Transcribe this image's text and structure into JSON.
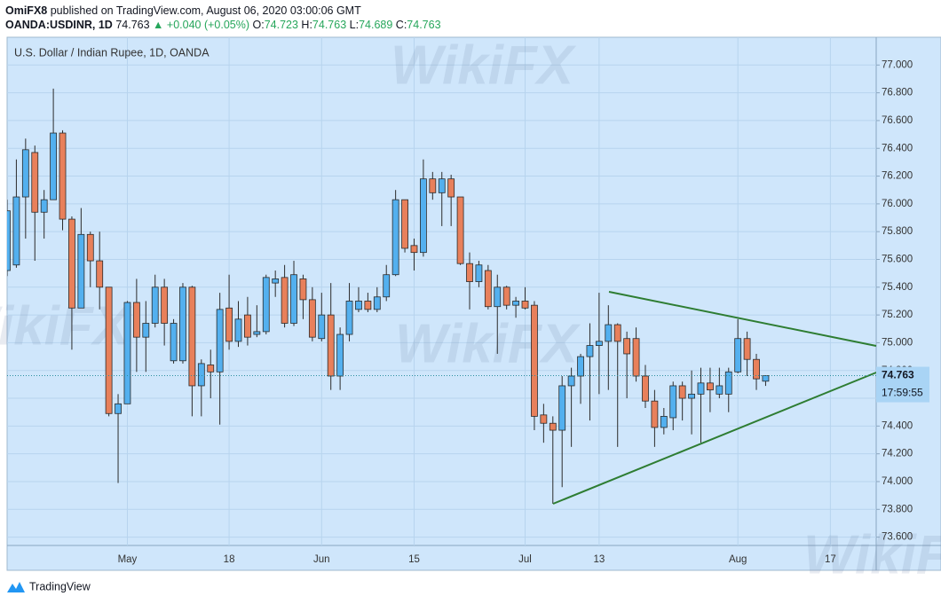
{
  "header": {
    "publisher": "OmiFX8",
    "published": "published on TradingView.com, August 06, 2020 03:00:06 GMT",
    "symbol": "OANDA:USDINR, 1D",
    "last": "74.763",
    "change": "▲ +0.040 (+0.05%)",
    "ohlc": [
      {
        "label": "O:",
        "value": "74.723"
      },
      {
        "label": "H:",
        "value": "74.763"
      },
      {
        "label": "L:",
        "value": "74.689"
      },
      {
        "label": "C:",
        "value": "74.763"
      }
    ]
  },
  "watermark": "WikiFX",
  "footer": "TradingView",
  "chart_data": {
    "type": "candlestick",
    "title": "U.S. Dollar / Indian Rupee, 1D, OANDA",
    "categories": [
      null,
      null,
      null,
      null,
      null,
      null,
      null,
      null,
      null,
      null,
      null,
      null,
      null,
      "May",
      null,
      null,
      null,
      null,
      null,
      null,
      null,
      null,
      null,
      null,
      "18",
      null,
      null,
      null,
      null,
      null,
      null,
      null,
      null,
      null,
      "Jun",
      null,
      null,
      null,
      null,
      null,
      null,
      null,
      null,
      null,
      "15",
      null,
      null,
      null,
      null,
      null,
      null,
      null,
      null,
      null,
      null,
      null,
      "Jul",
      null,
      null,
      null,
      null,
      null,
      null,
      null,
      "13",
      null,
      null,
      null,
      null,
      null,
      null,
      null,
      null,
      null,
      null,
      null,
      null,
      null,
      null,
      "Aug",
      null,
      null,
      null,
      null,
      null,
      null,
      null,
      null,
      null,
      "17"
    ],
    "open": [
      75.52,
      75.56,
      76.05,
      76.37,
      75.94,
      76.03,
      76.51,
      75.89,
      75.25,
      75.78,
      75.59,
      75.4,
      74.49,
      74.56,
      75.29,
      75.04,
      75.14,
      75.4,
      74.87,
      74.87,
      75.4,
      74.69,
      74.84,
      74.79,
      75.25,
      75.01,
      75.2,
      75.06,
      75.08,
      75.43,
      75.47,
      75.14,
      75.46,
      75.31,
      75.03,
      75.2,
      74.76,
      75.06,
      75.24,
      75.3,
      75.24,
      75.33,
      75.49,
      76.03,
      75.7,
      75.65,
      76.18,
      76.08,
      76.18,
      76.05,
      75.57,
      75.44,
      75.52,
      75.26,
      75.4,
      75.27,
      75.3,
      75.27,
      74.48,
      74.42,
      74.37,
      74.69,
      74.76,
      74.9,
      74.98,
      75.01,
      75.13,
      75.03,
      75.03,
      74.76,
      74.58,
      74.39,
      74.46,
      74.69,
      74.6,
      74.63,
      74.71,
      74.63,
      74.63,
      74.79,
      75.03,
      74.88,
      74.723,
      null,
      null,
      null,
      null,
      null,
      null,
      null
    ],
    "high": [
      76.03,
      76.32,
      76.47,
      76.42,
      76.1,
      76.83,
      76.53,
      75.91,
      75.97,
      75.8,
      75.8,
      75.4,
      74.63,
      75.3,
      75.46,
      75.3,
      75.49,
      75.46,
      75.17,
      75.43,
      75.41,
      74.88,
      74.95,
      75.36,
      75.49,
      75.3,
      75.33,
      75.27,
      75.49,
      75.52,
      75.56,
      75.59,
      75.49,
      75.4,
      75.36,
      75.43,
      75.11,
      75.43,
      75.4,
      75.36,
      75.4,
      75.56,
      76.1,
      76.03,
      75.75,
      76.32,
      76.23,
      76.23,
      76.21,
      76.05,
      75.65,
      75.59,
      75.56,
      75.49,
      75.41,
      75.33,
      75.4,
      75.3,
      74.56,
      74.47,
      74.76,
      74.82,
      74.92,
      75.14,
      75.36,
      75.27,
      75.14,
      75.08,
      75.11,
      74.84,
      74.66,
      74.53,
      74.72,
      74.72,
      74.8,
      74.82,
      74.82,
      74.82,
      74.82,
      75.17,
      75.08,
      74.92,
      74.763,
      null,
      null,
      null,
      null,
      null,
      null,
      null
    ],
    "low": [
      75.48,
      75.54,
      75.75,
      75.59,
      75.75,
      76.03,
      75.81,
      74.95,
      75.25,
      75.4,
      75.24,
      74.47,
      73.99,
      74.56,
      74.79,
      74.79,
      75.11,
      74.98,
      74.85,
      74.85,
      74.47,
      74.47,
      74.6,
      74.41,
      74.95,
      74.97,
      74.98,
      75.04,
      75.06,
      75.33,
      75.11,
      75.12,
      75.17,
      75.01,
      75.01,
      74.66,
      74.66,
      75.01,
      75.22,
      75.22,
      75.22,
      75.3,
      75.48,
      75.65,
      75.52,
      75.62,
      76.03,
      75.84,
      75.84,
      75.56,
      75.24,
      75.4,
      75.24,
      74.92,
      75.24,
      75.18,
      75.24,
      74.37,
      74.28,
      73.84,
      73.96,
      74.25,
      74.56,
      74.44,
      74.63,
      74.66,
      74.25,
      74.6,
      74.72,
      74.53,
      74.25,
      74.34,
      74.37,
      74.44,
      74.34,
      74.28,
      74.5,
      74.6,
      74.5,
      74.78,
      74.76,
      74.66,
      74.689,
      null,
      null,
      null,
      null,
      null,
      null,
      null
    ],
    "close": [
      75.95,
      76.05,
      76.39,
      75.94,
      76.03,
      76.51,
      75.89,
      75.25,
      75.78,
      75.59,
      75.4,
      74.49,
      74.56,
      75.29,
      75.04,
      75.14,
      75.4,
      75.14,
      75.14,
      75.4,
      74.69,
      74.85,
      74.79,
      75.24,
      75.01,
      75.17,
      75.04,
      75.08,
      75.47,
      75.46,
      75.14,
      75.49,
      75.31,
      75.04,
      75.2,
      74.76,
      75.06,
      75.3,
      75.3,
      75.24,
      75.33,
      75.49,
      76.03,
      75.68,
      75.65,
      76.18,
      76.08,
      76.18,
      76.05,
      75.57,
      75.44,
      75.56,
      75.26,
      75.4,
      75.27,
      75.3,
      75.25,
      74.47,
      74.42,
      74.37,
      74.69,
      74.76,
      74.9,
      74.98,
      75.01,
      75.13,
      75.01,
      74.92,
      74.76,
      74.58,
      74.39,
      74.47,
      74.69,
      74.6,
      74.63,
      74.71,
      74.66,
      74.69,
      74.79,
      75.03,
      74.88,
      74.74,
      74.763,
      null,
      null,
      null,
      null,
      null,
      null,
      null
    ],
    "up_color": "#53b0ef",
    "down_color": "#e8805b",
    "wick_color": "#2b2b2b",
    "ylim": [
      73.54,
      77.2
    ],
    "yticks": [
      {
        "value": 73.6,
        "label": "73.600"
      },
      {
        "value": 73.8,
        "label": "73.800"
      },
      {
        "value": 74.0,
        "label": "74.000"
      },
      {
        "value": 74.2,
        "label": "74.200"
      },
      {
        "value": 74.4,
        "label": "74.400"
      },
      {
        "value": 74.6,
        "label": "74.600"
      },
      {
        "value": 74.8,
        "label": "74.800"
      },
      {
        "value": 75.0,
        "label": "75.000"
      },
      {
        "value": 75.2,
        "label": "75.200"
      },
      {
        "value": 75.4,
        "label": "75.400"
      },
      {
        "value": 75.6,
        "label": "75.600"
      },
      {
        "value": 75.8,
        "label": "75.800"
      },
      {
        "value": 76.0,
        "label": "76.000"
      },
      {
        "value": 76.2,
        "label": "76.200"
      },
      {
        "value": 76.4,
        "label": "76.400"
      },
      {
        "value": 76.6,
        "label": "76.600"
      },
      {
        "value": 76.8,
        "label": "76.800"
      },
      {
        "value": 77.0,
        "label": "77.000"
      }
    ],
    "grid": true,
    "last_price": {
      "value": 74.763,
      "label": "74.763"
    },
    "countdown": "17:59:55"
  }
}
